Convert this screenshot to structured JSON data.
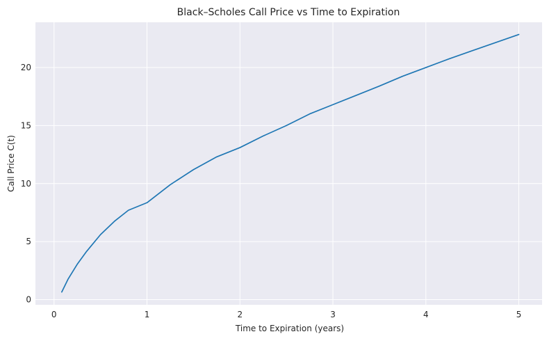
{
  "chart_data": {
    "type": "line",
    "title": "Black–Scholes Call Price vs Time to Expiration",
    "xlabel": "Time to Expiration (years)",
    "ylabel": "Call Price C(t)",
    "xlim": [
      -0.2,
      5.25
    ],
    "ylim": [
      -0.45,
      23.9
    ],
    "xticks": [
      0,
      1,
      2,
      3,
      4,
      5
    ],
    "xtick_labels": [
      "0",
      "1",
      "2",
      "3",
      "4",
      "5"
    ],
    "yticks": [
      0,
      5,
      10,
      15,
      20
    ],
    "ytick_labels": [
      "0",
      "5",
      "10",
      "15",
      "20"
    ],
    "grid": true,
    "legend": "none",
    "series": [
      {
        "color": "#1f77b4",
        "x": [
          0.083,
          0.15,
          0.25,
          0.35,
          0.5,
          0.65,
          0.8,
          1.0,
          1.25,
          1.5,
          1.75,
          2.0,
          2.25,
          2.5,
          2.75,
          3.0,
          3.25,
          3.5,
          3.75,
          4.0,
          4.25,
          4.5,
          4.75,
          5.0
        ],
        "y": [
          0.65,
          1.75,
          3.05,
          4.15,
          5.6,
          6.75,
          7.7,
          8.35,
          9.9,
          11.2,
          12.3,
          13.1,
          14.1,
          15.0,
          16.0,
          16.8,
          17.6,
          18.4,
          19.25,
          20.0,
          20.75,
          21.45,
          22.15,
          22.85
        ]
      }
    ],
    "colors": {
      "plot_background": "#eaeaf2",
      "grid": "#ffffff",
      "text": "#262626"
    }
  }
}
